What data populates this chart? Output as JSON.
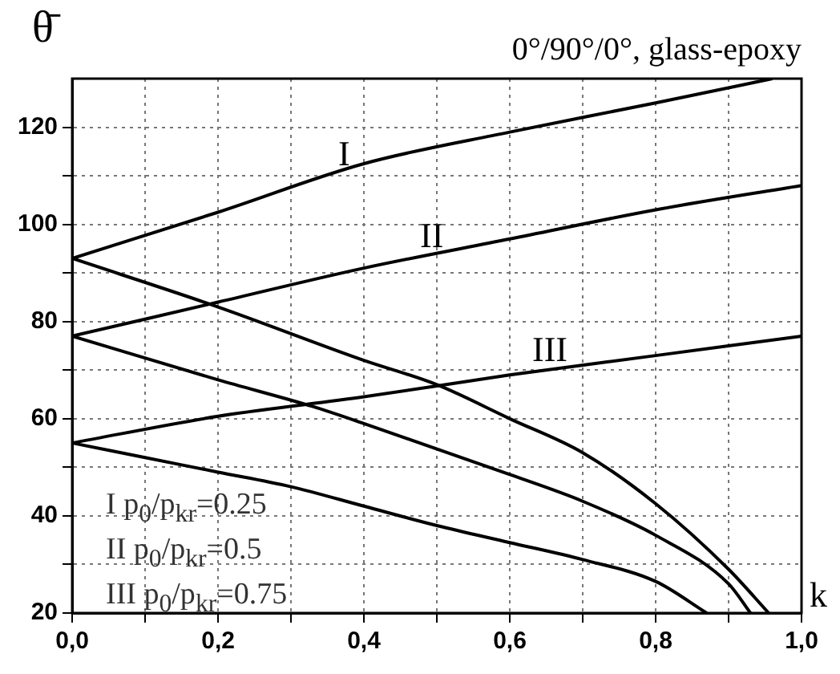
{
  "chart_data": {
    "type": "line",
    "title": "0°/90°/0°, glass-epoxy",
    "xlabel": "k",
    "ylabel": "θ̄",
    "xlim": [
      0,
      1
    ],
    "ylim": [
      20,
      130
    ],
    "xticks": [
      {
        "value": 0,
        "label": "0,0"
      },
      {
        "value": 0.1,
        "label": null
      },
      {
        "value": 0.2,
        "label": "0,2"
      },
      {
        "value": 0.3,
        "label": null
      },
      {
        "value": 0.4,
        "label": "0,4"
      },
      {
        "value": 0.5,
        "label": null
      },
      {
        "value": 0.6,
        "label": "0,6"
      },
      {
        "value": 0.7,
        "label": null
      },
      {
        "value": 0.8,
        "label": "0,8"
      },
      {
        "value": 0.9,
        "label": null
      },
      {
        "value": 1,
        "label": "1,0"
      }
    ],
    "yticks": [
      20,
      {
        "value": 30,
        "label": null
      },
      40,
      {
        "value": 50,
        "label": null
      },
      60,
      {
        "value": 70,
        "label": null
      },
      80,
      {
        "value": 90,
        "label": null
      },
      100,
      {
        "value": 110,
        "label": null
      },
      120
    ],
    "grid": true,
    "legend": false,
    "marker": "none",
    "line_style": "solid",
    "series": [
      {
        "color": "#000000",
        "x": [
          0,
          0.2,
          0.4,
          0.6,
          0.8,
          0.96
        ],
        "values": [
          93,
          102.5,
          112.5,
          119,
          125,
          130
        ]
      },
      {
        "color": "#000000",
        "x": [
          0,
          0.2,
          0.4,
          0.5,
          0.6,
          0.7,
          0.8,
          0.9,
          0.955
        ],
        "values": [
          93,
          83,
          72,
          67,
          60,
          53,
          42.5,
          29,
          20
        ]
      },
      {
        "color": "#000000",
        "x": [
          0,
          0.2,
          0.4,
          0.6,
          0.8,
          1
        ],
        "values": [
          77,
          84,
          91,
          97,
          103,
          108
        ]
      },
      {
        "color": "#000000",
        "x": [
          0,
          0.2,
          0.33,
          0.4,
          0.6,
          0.7,
          0.8,
          0.9,
          0.93
        ],
        "values": [
          77,
          68,
          62.5,
          59,
          48.5,
          43,
          36,
          26,
          20
        ]
      },
      {
        "color": "#000000",
        "x": [
          0,
          0.2,
          0.4,
          0.6,
          0.8,
          1
        ],
        "values": [
          55,
          60.5,
          64.5,
          69,
          73,
          77
        ]
      },
      {
        "color": "#000000",
        "x": [
          0,
          0.1,
          0.2,
          0.3,
          0.4,
          0.5,
          0.6,
          0.7,
          0.8,
          0.87
        ],
        "values": [
          55,
          52,
          49,
          46,
          42,
          38,
          34.5,
          31,
          26.5,
          20
        ]
      }
    ],
    "annotations": [
      "I",
      "II",
      "III",
      "I  p$_{0}$/p$_{kr}$=0.25",
      "II  p$_{0}$/p$_{kr}$=0.5",
      "III p$_{0}$/p$_{kr}$=0.75"
    ]
  }
}
